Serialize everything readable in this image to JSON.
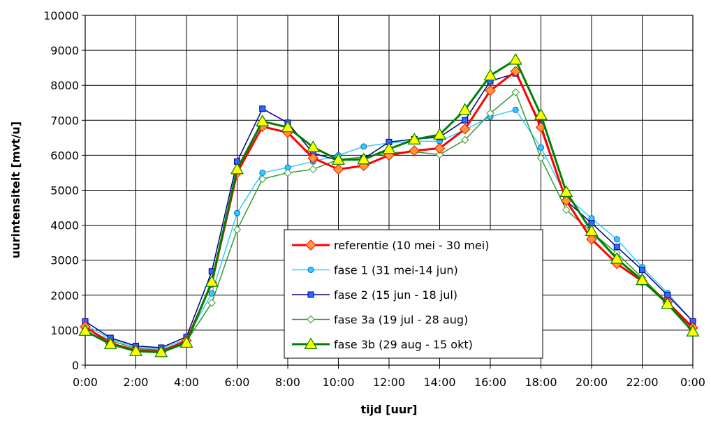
{
  "chart_data": {
    "type": "line",
    "title": "",
    "xlabel": "tijd [uur]",
    "ylabel": "uurintensiteit [mvt/u]",
    "ylim": [
      0,
      10000
    ],
    "y_ticks": [
      0,
      1000,
      2000,
      3000,
      4000,
      5000,
      6000,
      7000,
      8000,
      9000,
      10000
    ],
    "x": [
      0,
      1,
      2,
      3,
      4,
      5,
      6,
      7,
      8,
      9,
      10,
      11,
      12,
      13,
      14,
      15,
      16,
      17,
      18,
      19,
      20,
      21,
      22,
      23,
      24
    ],
    "x_ticks": [
      "0:00",
      "2:00",
      "4:00",
      "6:00",
      "8:00",
      "10:00",
      "12:00",
      "14:00",
      "16:00",
      "18:00",
      "20:00",
      "22:00",
      "0:00"
    ],
    "grid": true,
    "legend_position": "center-right",
    "series": [
      {
        "name": "referentie (10 mei - 30 mei)",
        "color": "#ff0000",
        "marker": "diamond",
        "marker_fill": "#ff9933",
        "values": [
          1100,
          620,
          430,
          390,
          700,
          2350,
          5500,
          6820,
          6650,
          5920,
          5600,
          5700,
          6000,
          6130,
          6200,
          6750,
          7850,
          8400,
          6800,
          4700,
          3600,
          2900,
          2400,
          1800,
          1070
        ]
      },
      {
        "name": "fase 1 (31 mei-14 jun)",
        "color": "#33ccff",
        "marker": "circle",
        "marker_fill": "#33ccff",
        "values": [
          1150,
          750,
          520,
          460,
          750,
          2050,
          4350,
          5500,
          5650,
          5820,
          6000,
          6250,
          6350,
          6400,
          6400,
          6730,
          7100,
          7300,
          6220,
          4820,
          4200,
          3600,
          2800,
          2060,
          1250
        ]
      },
      {
        "name": "fase 2 (15 jun - 18 jul)",
        "color": "#000080",
        "marker": "square",
        "marker_fill": "#3366ff",
        "values": [
          1250,
          780,
          550,
          500,
          810,
          2680,
          5820,
          7330,
          6930,
          6060,
          5850,
          5900,
          6380,
          6460,
          6520,
          7000,
          8120,
          8340,
          6880,
          4700,
          4060,
          3380,
          2720,
          2000,
          1250
        ]
      },
      {
        "name": "fase 3a (19 jul - 28 aug)",
        "color": "#339933",
        "marker": "diamond",
        "marker_fill": "#ffffff",
        "values": [
          1050,
          700,
          480,
          430,
          680,
          1780,
          3870,
          5320,
          5500,
          5600,
          5880,
          5950,
          6070,
          6100,
          6020,
          6440,
          7200,
          7800,
          5920,
          4440,
          3800,
          3200,
          2500,
          1780,
          1050
        ]
      },
      {
        "name": "fase 3b (29 aug - 15 okt)",
        "color": "#008000",
        "marker": "triangle",
        "marker_fill": "#ffff00",
        "values": [
          980,
          600,
          400,
          370,
          640,
          2380,
          5600,
          6970,
          6800,
          6230,
          5870,
          5880,
          6180,
          6450,
          6590,
          7300,
          8280,
          8730,
          7150,
          4950,
          3830,
          3040,
          2430,
          1750,
          960
        ]
      }
    ]
  }
}
